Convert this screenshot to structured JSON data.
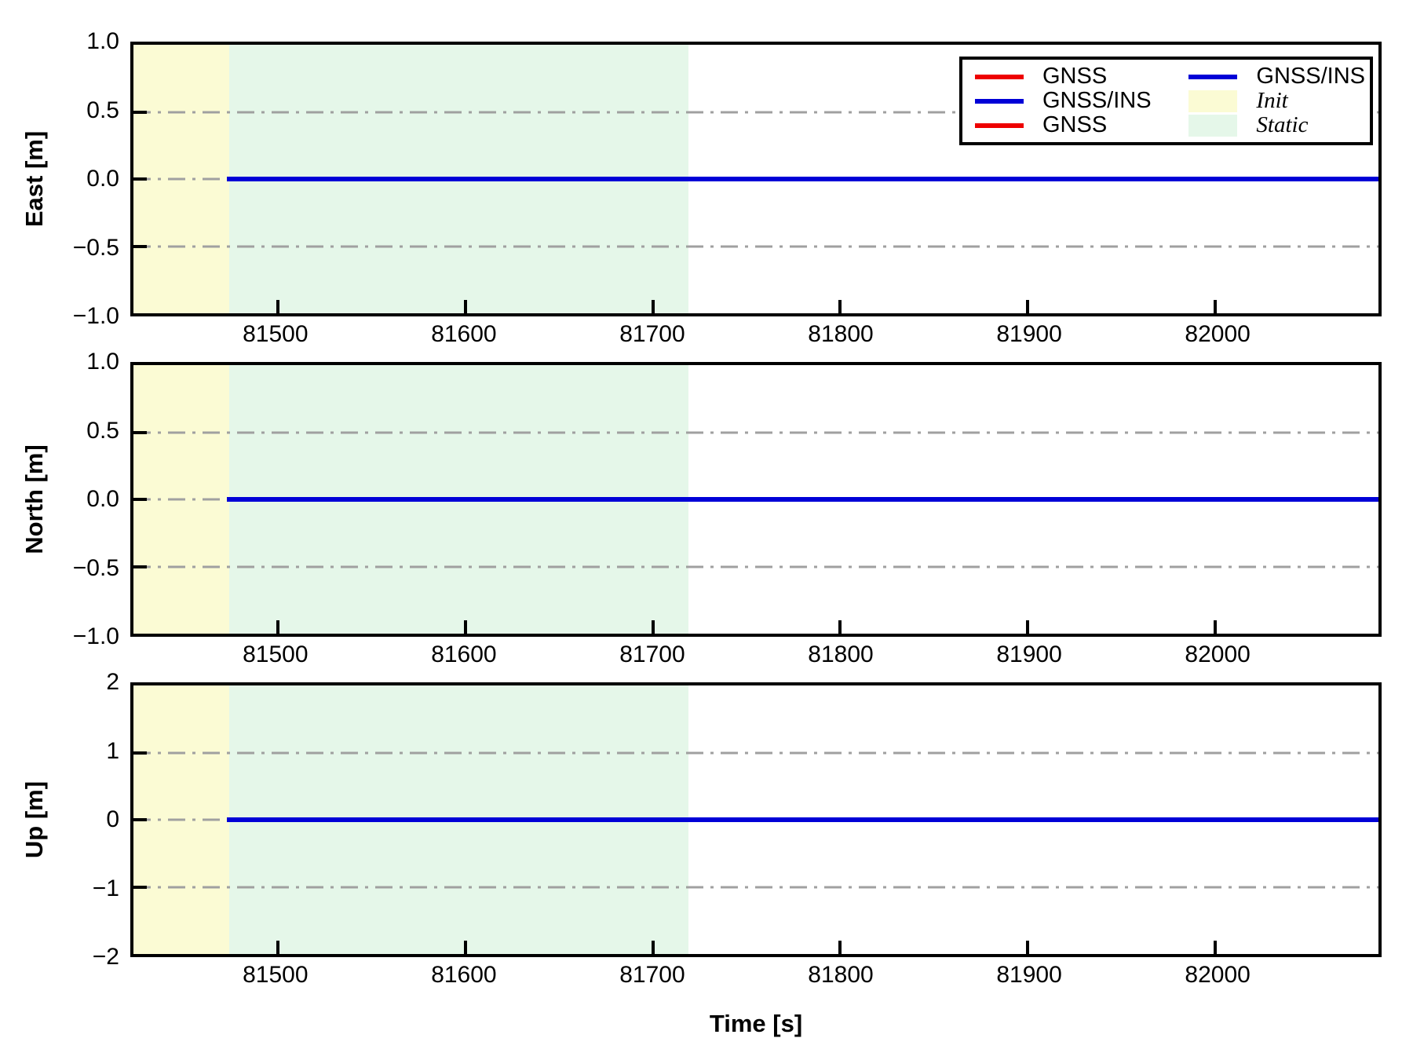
{
  "figure": {
    "background": "#ffffff",
    "frame_color": "#000000"
  },
  "chart_data": {
    "type": "line",
    "title": "",
    "xlabel": "Time [s]",
    "xlim": [
      81423,
      82087
    ],
    "xticks": [
      81500,
      81600,
      81700,
      81800,
      81900,
      82000
    ],
    "grid_color": "#a0a0a0",
    "grid_style": "dash-dot",
    "legend_position": "upper right (first subplot)",
    "regions": [
      {
        "label": "Init",
        "from": 81423,
        "to": 81474,
        "color": "#fbfbd4"
      },
      {
        "label": "Static",
        "from": 81474,
        "to": 81719,
        "color": "#e5f7e9"
      }
    ],
    "subplots": [
      {
        "ylabel": "East [m]",
        "ylim": [
          -1.0,
          1.0
        ],
        "yticks": [
          {
            "value": 1.0,
            "label": "1.0"
          },
          {
            "value": 0.5,
            "label": "0.5"
          },
          {
            "value": 0.0,
            "label": "0.0"
          },
          {
            "value": -0.5,
            "label": "−0.5"
          },
          {
            "value": -1.0,
            "label": "−1.0"
          }
        ],
        "grid_values": [
          0.5,
          0.0,
          -0.5
        ],
        "series": [
          {
            "name": "GNSS",
            "color": "#ee0000",
            "x": [
              81473,
              82087
            ],
            "y": [
              0.0,
              0.0
            ]
          },
          {
            "name": "GNSS/INS",
            "color": "#0000d7",
            "x": [
              81473,
              82087
            ],
            "y": [
              0.0,
              0.0
            ]
          }
        ]
      },
      {
        "ylabel": "North [m]",
        "ylim": [
          -1.0,
          1.0
        ],
        "yticks": [
          {
            "value": 1.0,
            "label": "1.0"
          },
          {
            "value": 0.5,
            "label": "0.5"
          },
          {
            "value": 0.0,
            "label": "0.0"
          },
          {
            "value": -0.5,
            "label": "−0.5"
          },
          {
            "value": -1.0,
            "label": "−1.0"
          }
        ],
        "grid_values": [
          0.5,
          0.0,
          -0.5
        ],
        "series": [
          {
            "name": "GNSS",
            "color": "#ee0000",
            "x": [
              81473,
              82087
            ],
            "y": [
              0.0,
              0.0
            ]
          },
          {
            "name": "GNSS/INS",
            "color": "#0000d7",
            "x": [
              81473,
              82087
            ],
            "y": [
              0.0,
              0.0
            ]
          }
        ]
      },
      {
        "ylabel": "Up [m]",
        "ylim": [
          -2,
          2
        ],
        "yticks": [
          {
            "value": 2,
            "label": "2"
          },
          {
            "value": 1,
            "label": "1"
          },
          {
            "value": 0,
            "label": "0"
          },
          {
            "value": -1,
            "label": "−1"
          },
          {
            "value": -2,
            "label": "−2"
          }
        ],
        "grid_values": [
          1,
          0,
          -1
        ],
        "series": [
          {
            "name": "GNSS",
            "color": "#ee0000",
            "x": [
              81473,
              82087
            ],
            "y": [
              0.0,
              0.0
            ]
          },
          {
            "name": "GNSS/INS",
            "color": "#0000d7",
            "x": [
              81473,
              82087
            ],
            "y": [
              0.0,
              0.0
            ]
          }
        ]
      }
    ],
    "legend": {
      "left": [
        {
          "label": "GNSS",
          "type": "line",
          "color": "#ee0000"
        },
        {
          "label": "GNSS/INS",
          "type": "line",
          "color": "#0000d7"
        },
        {
          "label": "GNSS",
          "type": "line",
          "color": "#ee0000"
        }
      ],
      "right": [
        {
          "label": "GNSS/INS",
          "type": "line",
          "color": "#0000d7"
        },
        {
          "label": "Init",
          "type": "patch",
          "color": "#fbfbd4"
        },
        {
          "label": "Static",
          "type": "patch",
          "color": "#e5f7e9"
        }
      ]
    }
  }
}
